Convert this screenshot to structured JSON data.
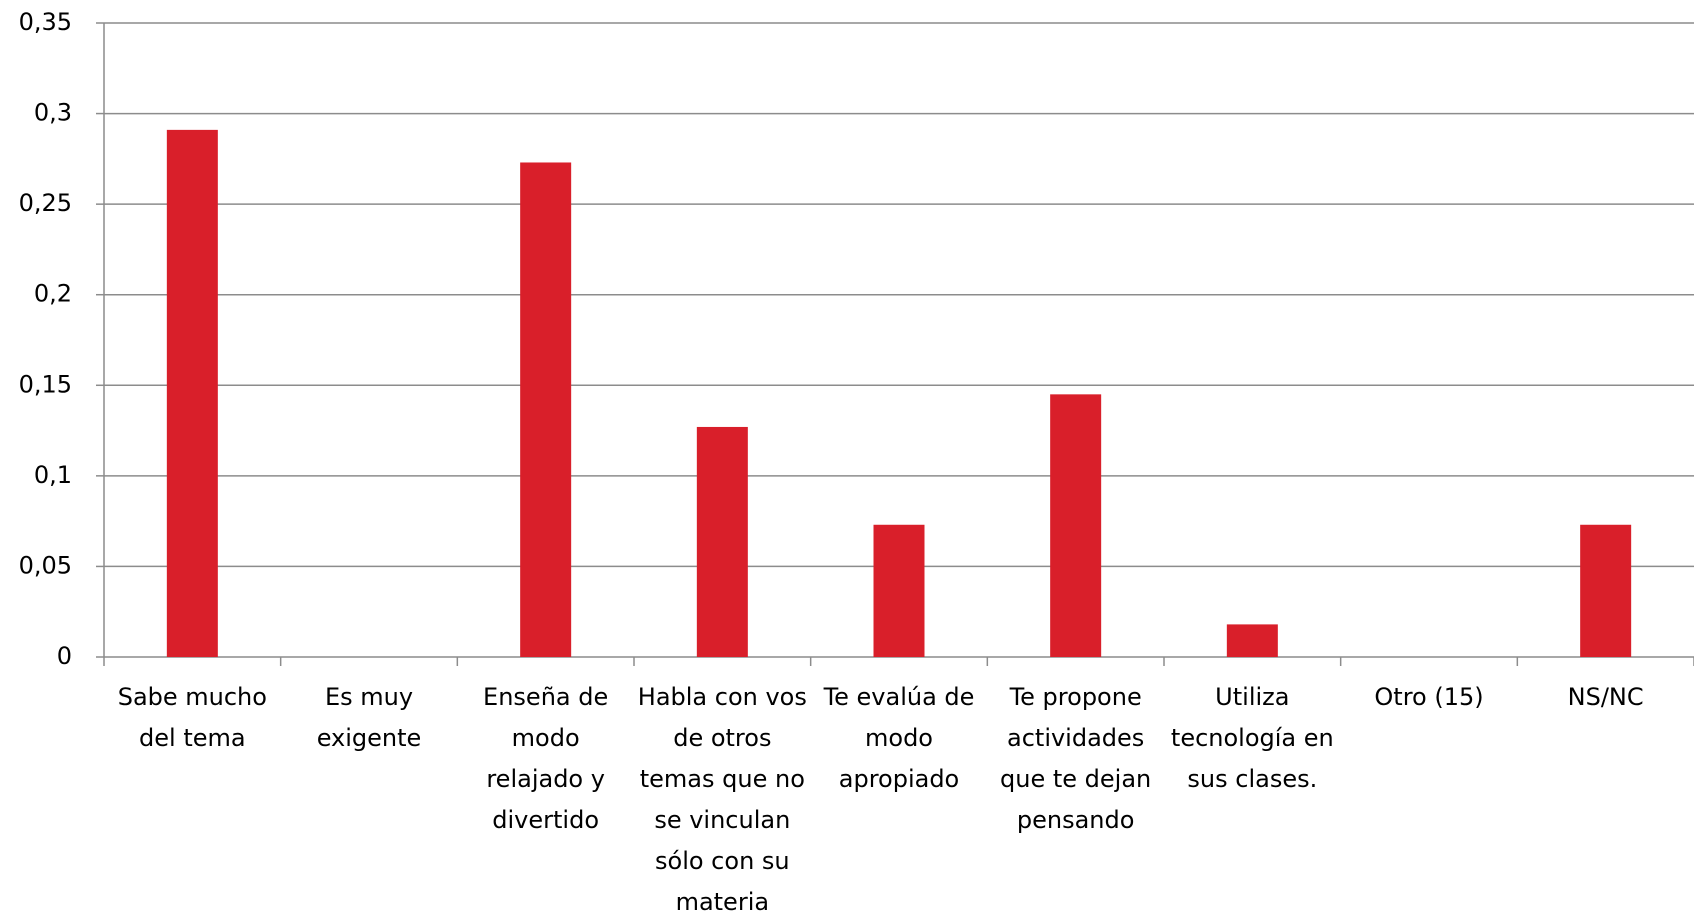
{
  "chart_data": {
    "type": "bar",
    "categories": [
      "Sabe mucho del tema",
      "Es muy exigente",
      "Enseña de modo relajado y divertido",
      "Habla con vos de otros temas que no se vinculan sólo con su materia",
      "Te evalúa de modo apropiado",
      "Te propone actividades que te dejan pensando",
      "Utiliza tecnología en sus clases.",
      "Otro (15)",
      "NS/NC"
    ],
    "values": [
      0.291,
      0,
      0.273,
      0.127,
      0.073,
      0.145,
      0.018,
      0,
      0.073
    ],
    "color": "#d91f2a",
    "ylim": [
      0,
      0.35
    ],
    "yticks": [
      0,
      {
        "value": 0.05,
        "label": "0,05"
      },
      {
        "value": 0.1,
        "label": "0,1"
      },
      {
        "value": 0.15,
        "label": "0,15"
      },
      {
        "value": 0.2,
        "label": "0,2"
      },
      {
        "value": 0.25,
        "label": "0,25"
      },
      {
        "value": 0.3,
        "label": "0,3"
      },
      {
        "value": 0.35,
        "label": "0,35"
      }
    ],
    "grid": true
  }
}
